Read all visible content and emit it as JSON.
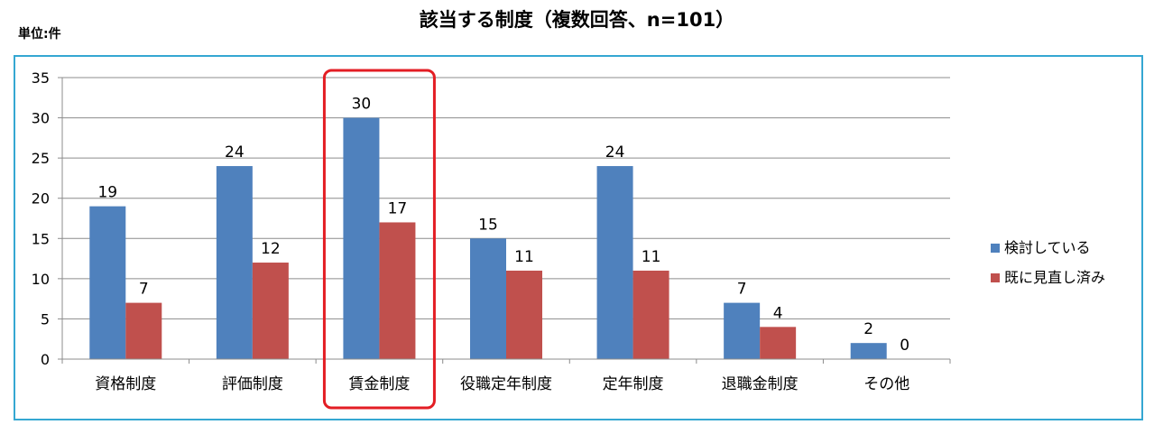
{
  "header": {
    "title": "該当する制度（複数回答、n=101）",
    "unit": "単位:件"
  },
  "chart_data": {
    "type": "bar",
    "title": "該当する制度（複数回答、n=101）",
    "xlabel": "",
    "ylabel": "",
    "unit_label": "単位:件",
    "categories": [
      "資格制度",
      "評価制度",
      "賃金制度",
      "役職定年制度",
      "定年制度",
      "退職金制度",
      "その他"
    ],
    "series": [
      {
        "name": "検討している",
        "values": [
          19,
          24,
          30,
          15,
          24,
          7,
          2
        ],
        "color": "#4f81bd"
      },
      {
        "name": "既に見直し済み",
        "values": [
          7,
          12,
          17,
          11,
          11,
          4,
          0
        ],
        "color": "#c0504d"
      }
    ],
    "ylim": [
      0,
      35
    ],
    "yticks": [
      0,
      5,
      10,
      15,
      20,
      25,
      30,
      35
    ],
    "grid": true,
    "legend": "right",
    "data_labels": true,
    "highlighted_category": "賃金制度",
    "highlight_color": "#e31e24",
    "frame_color": "#35a7d2"
  }
}
